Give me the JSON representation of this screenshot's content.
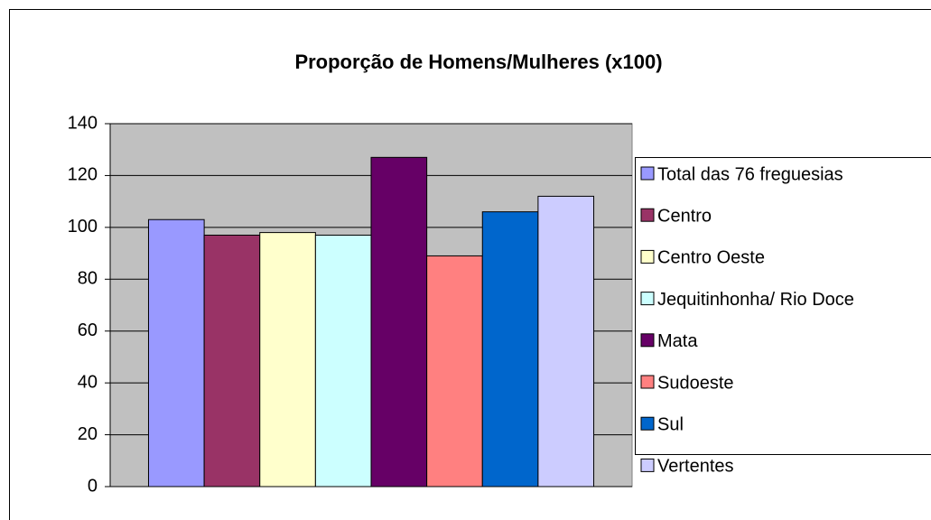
{
  "chart_data": {
    "type": "bar",
    "title": "Proporção de Homens/Mulheres (x100)",
    "categories": [
      null
    ],
    "series": [
      {
        "name": "Total das 76 freguesias",
        "color": "#9999ff",
        "values": [
          103
        ]
      },
      {
        "name": "Centro",
        "color": "#993366",
        "values": [
          97
        ]
      },
      {
        "name": "Centro Oeste",
        "color": "#ffffcc",
        "values": [
          98
        ]
      },
      {
        "name": "Jequitinhonha/ Rio Doce",
        "color": "#ccffff",
        "values": [
          97
        ]
      },
      {
        "name": "Mata",
        "color": "#660066",
        "values": [
          127
        ]
      },
      {
        "name": "Sudoeste",
        "color": "#ff8080",
        "values": [
          89
        ]
      },
      {
        "name": "Sul",
        "color": "#0066cc",
        "values": [
          106
        ]
      },
      {
        "name": "Vertentes",
        "color": "#ccccff",
        "values": [
          112
        ]
      }
    ],
    "ylim": [
      0,
      140
    ],
    "yticks": [
      0,
      20,
      40,
      60,
      80,
      100,
      120,
      140
    ],
    "grid": true,
    "legend": "right"
  }
}
